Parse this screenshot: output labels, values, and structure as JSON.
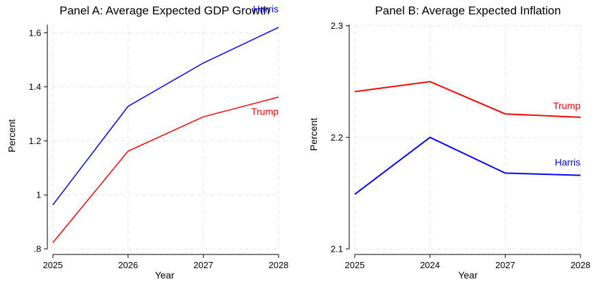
{
  "chart_data": [
    {
      "type": "line",
      "title": "Panel A: Average Expected GDP Growth",
      "xlabel": "Year",
      "ylabel": "Percent",
      "categories": [
        "2025",
        "2026",
        "2027",
        "2028"
      ],
      "yticks": [
        0.8,
        1.0,
        1.2,
        1.4,
        1.6
      ],
      "ytick_labels": [
        ".8",
        "1",
        "1.2",
        "1.4",
        "1.6"
      ],
      "ylim": [
        0.8,
        1.63
      ],
      "grid": true,
      "series": [
        {
          "name": "Harris",
          "color": "#0000ff",
          "values": [
            0.963,
            1.328,
            1.488,
            1.62
          ]
        },
        {
          "name": "Trump",
          "color": "#ff0000",
          "values": [
            0.823,
            1.162,
            1.289,
            1.362
          ]
        }
      ]
    },
    {
      "type": "line",
      "title": "Panel B: Average Expected Inflation",
      "xlabel": "Year",
      "ylabel": "Percent",
      "categories": [
        "2025",
        "2024",
        "2027",
        "2028"
      ],
      "yticks": [
        2.1,
        2.2,
        2.3
      ],
      "ytick_labels": [
        "2.1",
        "2.2",
        "2.3"
      ],
      "ylim": [
        2.1,
        2.301
      ],
      "grid": true,
      "series": [
        {
          "name": "Trump",
          "color": "#ff0000",
          "values": [
            2.241,
            2.25,
            2.221,
            2.218
          ]
        },
        {
          "name": "Harris",
          "color": "#0000ff",
          "values": [
            2.149,
            2.2,
            2.168,
            2.166
          ]
        }
      ]
    }
  ]
}
